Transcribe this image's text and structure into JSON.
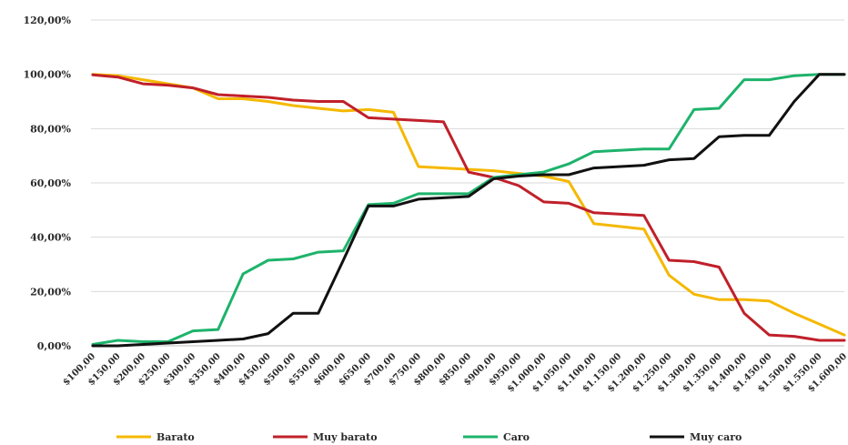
{
  "chart_data": {
    "type": "line",
    "title": "",
    "xlabel": "",
    "ylabel": "",
    "ylim": [
      0,
      120
    ],
    "y_ticks": [
      "0,00%",
      "20,00%",
      "40,00%",
      "60,00%",
      "80,00%",
      "100,00%",
      "120,00%"
    ],
    "categories": [
      "$100,00",
      "$150,00",
      "$200,00",
      "$250,00",
      "$300,00",
      "$350,00",
      "$400,00",
      "$450,00",
      "$500,00",
      "$550,00",
      "$600,00",
      "$650,00",
      "$700,00",
      "$750,00",
      "$800,00",
      "$850,00",
      "$900,00",
      "$950,00",
      "$1.000,00",
      "$1.050,00",
      "$1.100,00",
      "$1.150,00",
      "$1.200,00",
      "$1.250,00",
      "$1.300,00",
      "$1.350,00",
      "$1.400,00",
      "$1.450,00",
      "$1.500,00",
      "$1.550,00",
      "$1.600,00"
    ],
    "grid": true,
    "legend_position": "bottom",
    "series": [
      {
        "name": "Barato",
        "color": "#F5B800",
        "values": [
          100,
          99.5,
          98,
          96.5,
          95,
          91,
          91,
          90,
          88.5,
          87.5,
          86.5,
          87,
          86,
          66,
          65.5,
          65,
          64.5,
          63.5,
          62.5,
          60.5,
          45,
          44,
          43,
          26,
          19,
          17,
          17,
          16.5,
          12,
          8,
          4
        ]
      },
      {
        "name": "Muy barato",
        "color": "#C0202A",
        "values": [
          99.8,
          99,
          96.5,
          96,
          95,
          92.5,
          92,
          91.5,
          90.5,
          90,
          90,
          84,
          83.5,
          83,
          82.5,
          64,
          62,
          59,
          53,
          52.5,
          49,
          48.5,
          48,
          31.5,
          31,
          29,
          12,
          4,
          3.5,
          2,
          2
        ]
      },
      {
        "name": "Caro",
        "color": "#1DB36B",
        "values": [
          0.5,
          2,
          1.5,
          1.5,
          5.5,
          6,
          26.5,
          31.5,
          32,
          34.5,
          35,
          52,
          52.5,
          56,
          56,
          56,
          62,
          63,
          64,
          67,
          71.5,
          72,
          72.5,
          72.5,
          87,
          87.5,
          98,
          98,
          99.5,
          100,
          100
        ]
      },
      {
        "name": "Muy caro",
        "color": "#111111",
        "values": [
          0,
          0,
          0.5,
          1,
          1.5,
          2,
          2.5,
          4.5,
          12,
          12,
          31.5,
          51.5,
          51.5,
          54,
          54.5,
          55,
          61.5,
          62.5,
          63,
          63,
          65.5,
          66,
          66.5,
          68.5,
          69,
          77,
          77.5,
          77.5,
          90,
          100,
          100
        ]
      }
    ]
  }
}
